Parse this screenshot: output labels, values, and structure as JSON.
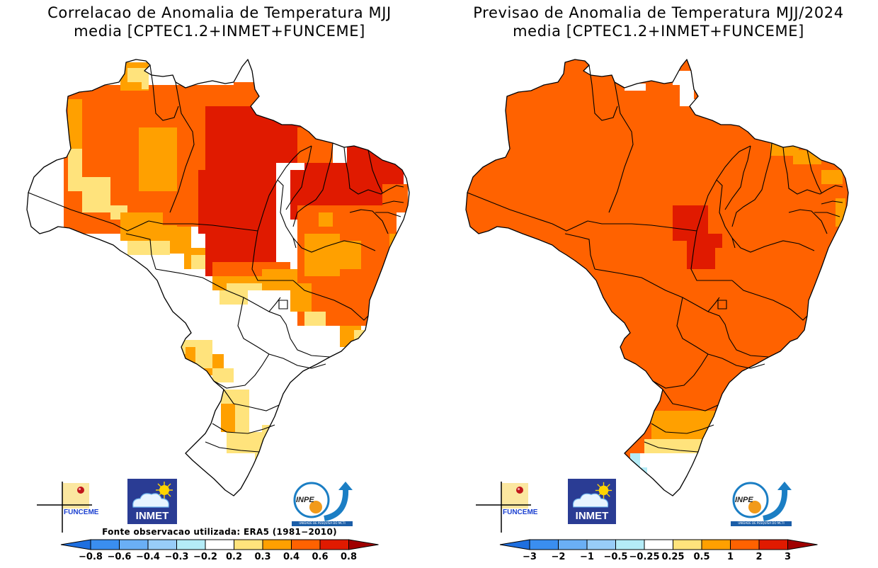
{
  "panels": [
    {
      "id": "correlation",
      "title_line1": "Correlacao de Anomalia de Temperatura MJJ",
      "title_line2": "media [CPTEC1.2+INMET+FUNCEME]",
      "source_note": "Fonte observacao utilizada: ERA5 (1981−2010)",
      "colorbar": {
        "colors": [
          "#1e6fe0",
          "#3a8ef0",
          "#6aaff5",
          "#98cdf8",
          "#b4ecf7",
          "#ffffff",
          "#ffe37c",
          "#ffa000",
          "#ff6200",
          "#e01a00",
          "#a00000"
        ],
        "tick_labels": [
          "−0.8",
          "−0.6",
          "−0.4",
          "−0.3",
          "−0.2",
          "0.2",
          "0.3",
          "0.4",
          "0.6",
          "0.8"
        ]
      }
    },
    {
      "id": "forecast",
      "title_line1": "Previsao de Anomalia de Temperatura MJJ/2024",
      "title_line2": "media [CPTEC1.2+INMET+FUNCEME]",
      "source_note": "",
      "colorbar": {
        "colors": [
          "#1e6fe0",
          "#3a8ef0",
          "#6aaff5",
          "#98cdf8",
          "#b4ecf7",
          "#ffffff",
          "#ffe37c",
          "#ffa000",
          "#ff6200",
          "#e01a00",
          "#a00000"
        ],
        "tick_labels": [
          "−3",
          "−2",
          "−1",
          "−0.5",
          "−0.25",
          "0.25",
          "0.5",
          "1",
          "2",
          "3"
        ]
      }
    }
  ],
  "logos": {
    "funceme": "FUNCEME",
    "inmet": "INMET",
    "inpe": "INPE",
    "inpe_subtitle": "UNIDADE DE PESQUISA DO MCTI"
  },
  "map_fields": {
    "correlation_regions": [
      {
        "region": "north-central Para / Tocantins / Maranhao / Piaui / Ceara",
        "category": "0.6-0.8"
      },
      {
        "region": "Amazonas / Roraima / Amapa / Bahia",
        "category": "0.4-0.6"
      },
      {
        "region": "western Amazonas interior / Bahia interior",
        "category": "0.3-0.4"
      },
      {
        "region": "Acre edge / Mato Grosso south / Mato Grosso do Sul / Parana / Santa Catarina",
        "category": "0.2-0.3"
      },
      {
        "region": "Acre / Rondonia / Goias / Minas Gerais / Sao Paulo / Rio Grande do Sul",
        "category": "-0.2-0.2"
      }
    ],
    "forecast_regions": [
      {
        "region": "most of Brazil",
        "category": "1-2"
      },
      {
        "region": "Para / Tocantins / Mato Grosso border",
        "category": "2-3"
      },
      {
        "region": "Ceara / Rio Grande do Norte coast, Espirito Santo / Rio / Sao Paulo coast, Parana, Santa Catarina",
        "category": "0.5-1"
      },
      {
        "region": "northern Rio Grande do Sul",
        "category": "0.25-0.5"
      },
      {
        "region": "southern Rio Grande do Sul",
        "category": "-0.25-0.25"
      },
      {
        "region": "far-west Rio Grande do Sul",
        "category": "-0.5--0.25"
      }
    ]
  }
}
